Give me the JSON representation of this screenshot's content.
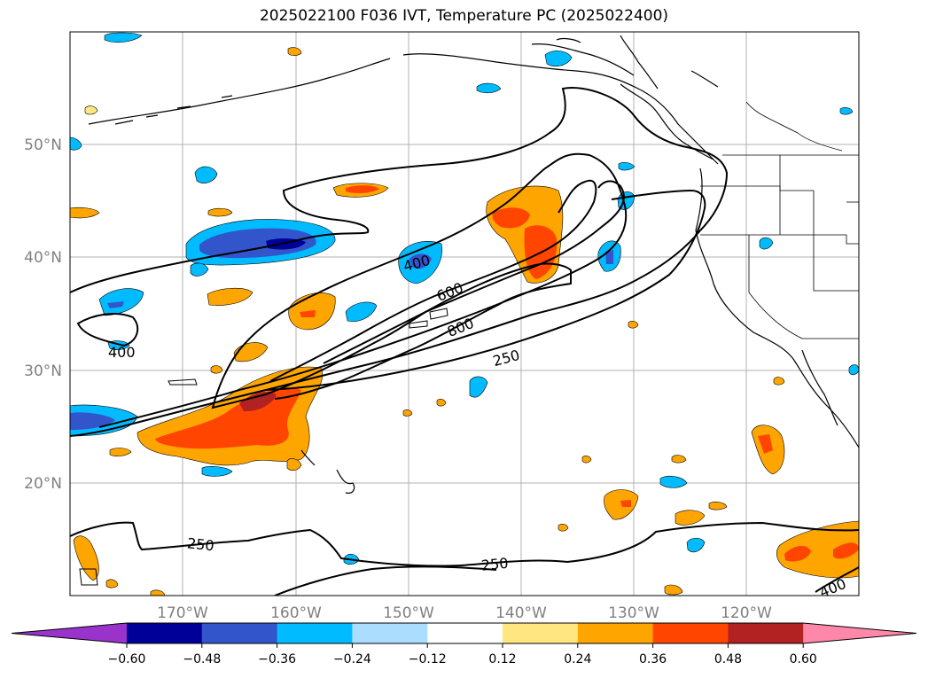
{
  "title": "2025022100 F036 IVT, Temperature PC (2025022400)",
  "lon_labels": [
    "170°W",
    "160°W",
    "150°W",
    "140°W",
    "130°W",
    "120°W"
  ],
  "lat_labels": [
    "50°N",
    "40°N",
    "30°N",
    "20°N"
  ],
  "colorbar": {
    "colors": [
      "#9933cc",
      "#000099",
      "#3355cc",
      "#00bbff",
      "#aaddff",
      "#ffffff",
      "#ffe680",
      "#ffa500",
      "#ff4500",
      "#b22222",
      "#ff88aa"
    ],
    "tick_labels": [
      "−0.60",
      "−0.48",
      "−0.36",
      "−0.24",
      "−0.12",
      "0.12",
      "0.24",
      "0.36",
      "0.48",
      "0.60"
    ]
  },
  "contour_labels": [
    "400",
    "600",
    "800",
    "250",
    "400",
    "250",
    "250",
    "400"
  ]
}
